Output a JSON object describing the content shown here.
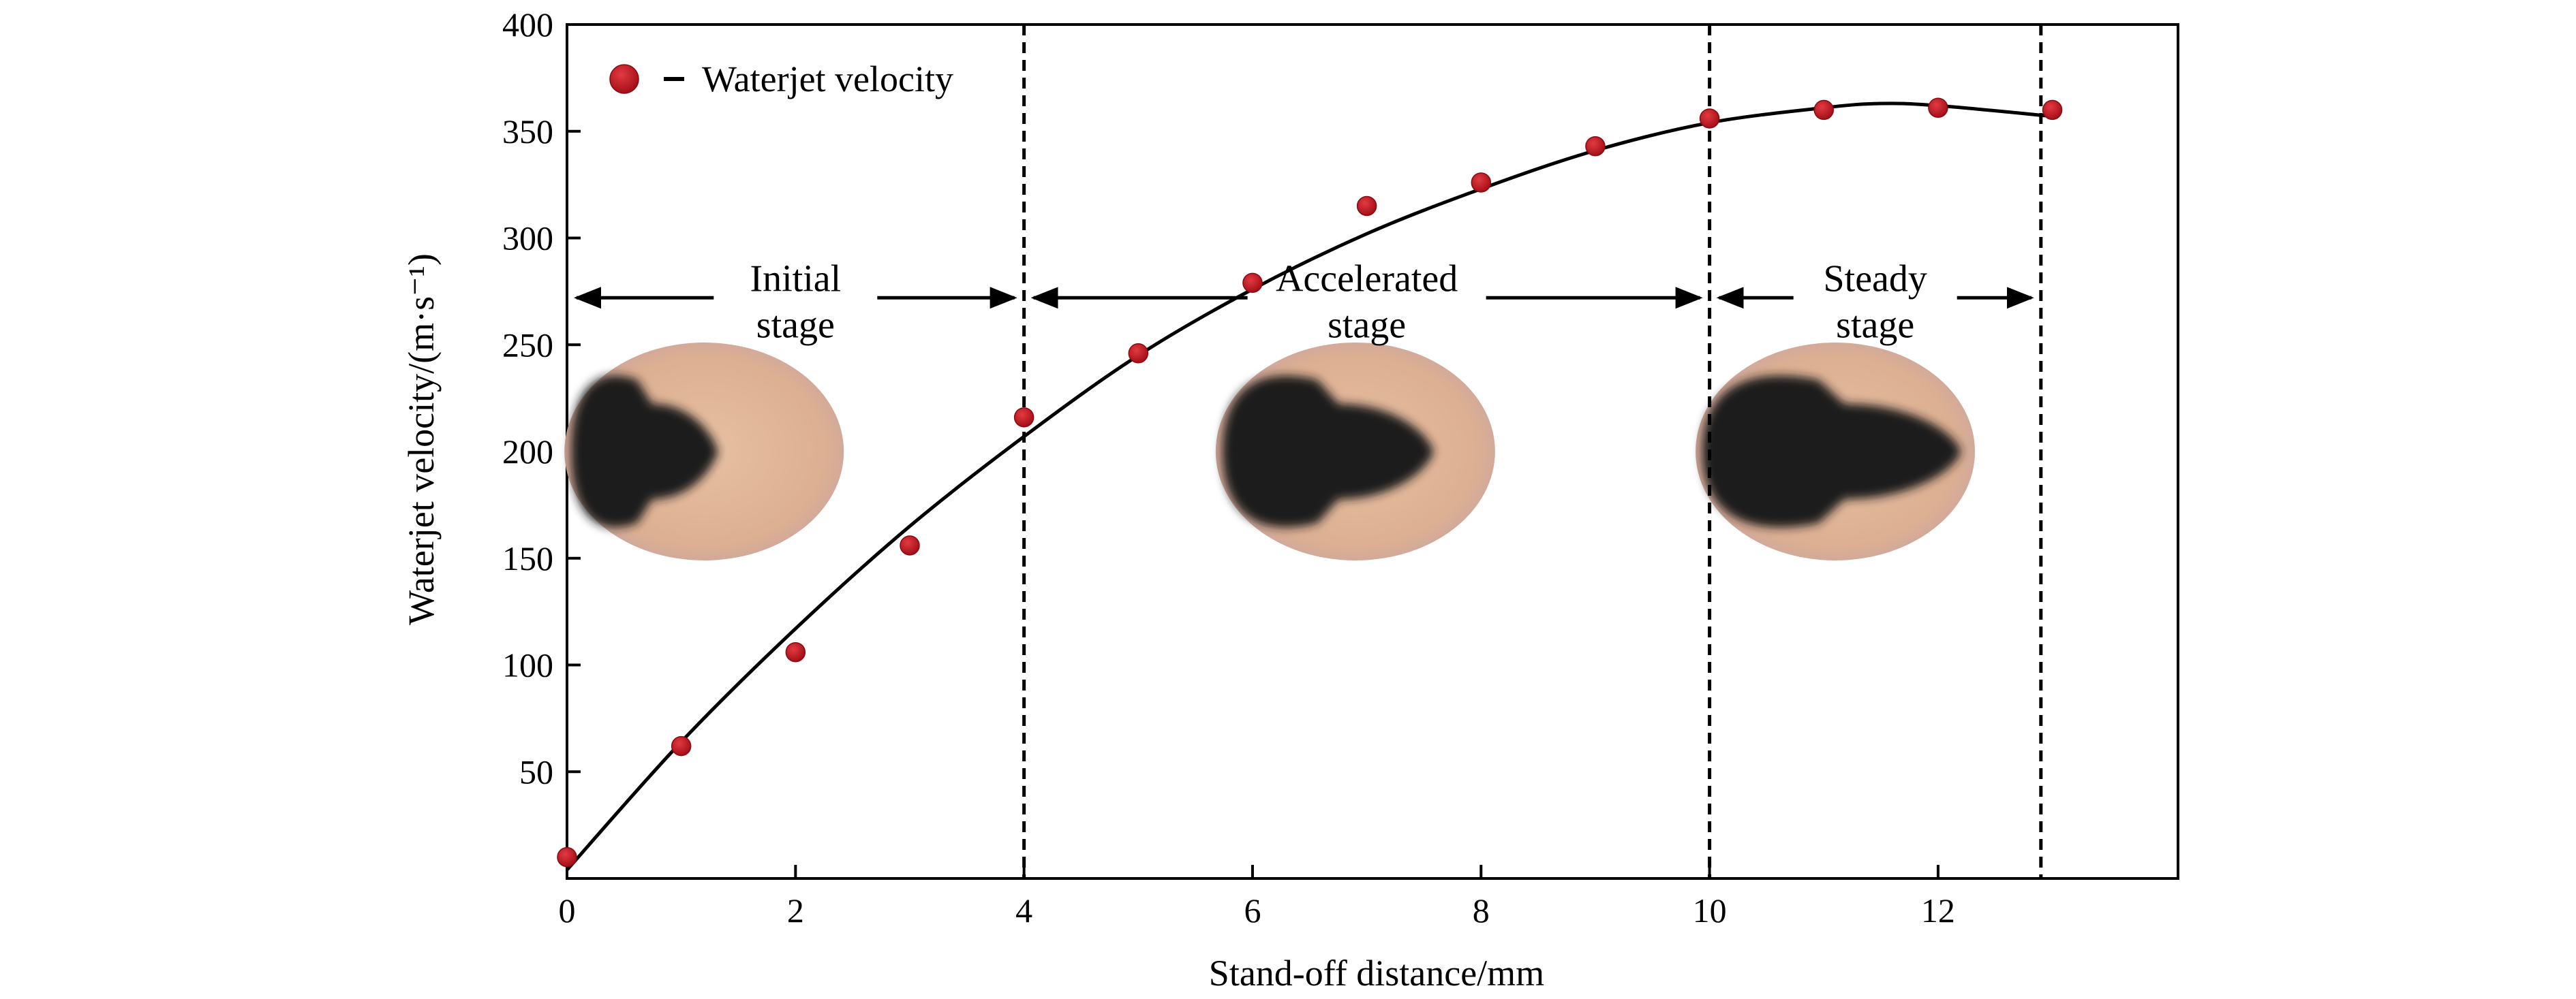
{
  "chart_data": {
    "type": "scatter",
    "xlabel": "Stand-off distance/mm",
    "ylabel": "Waterjet velocity/(m·s⁻¹)",
    "xlim": [
      0,
      14.1
    ],
    "ylim": [
      0,
      400
    ],
    "x_ticks": [
      "0",
      "2",
      "4",
      "6",
      "8",
      "10",
      "12"
    ],
    "x_tick_values": [
      0,
      2,
      4,
      6,
      8,
      10,
      12
    ],
    "y_ticks": [
      "50",
      "100",
      "150",
      "200",
      "250",
      "300",
      "350",
      "400"
    ],
    "y_tick_values": [
      50,
      100,
      150,
      200,
      250,
      300,
      350,
      400
    ],
    "grid": false,
    "legend": {
      "position": "top-left",
      "entries": [
        "Waterjet velocity"
      ]
    },
    "series": [
      {
        "name": "Waterjet velocity",
        "color": "#c0141e",
        "marker": "circle",
        "x": [
          0,
          1,
          2,
          3,
          4,
          5,
          6,
          7,
          8,
          9,
          10,
          11,
          12,
          13
        ],
        "y": [
          10,
          62,
          106,
          156,
          216,
          246,
          279,
          315,
          326,
          343,
          356,
          360,
          361,
          360
        ]
      }
    ],
    "fit_curve": {
      "style": "solid",
      "color": "#000000",
      "x": [
        0,
        1,
        2,
        3,
        4,
        5,
        6,
        7,
        8,
        9,
        10,
        11,
        11.5,
        12,
        13
      ],
      "y": [
        4,
        64,
        117,
        165,
        207,
        245,
        276,
        302,
        323,
        341,
        354,
        361,
        363,
        362,
        357
      ]
    },
    "stage_boundaries": [
      4,
      10,
      12.9
    ],
    "stages": [
      {
        "line1": "Initial",
        "line2": "stage",
        "x_from": 0,
        "x_to": 4
      },
      {
        "line1": "Accelerated",
        "line2": "stage",
        "x_from": 4,
        "x_to": 10
      },
      {
        "line1": "Steady",
        "line2": "stage",
        "x_from": 10,
        "x_to": 12.9
      }
    ],
    "arrow_y": 272,
    "jet_images": [
      {
        "stage": "Initial",
        "x": 1.2,
        "y": 200,
        "core_extent": 0.55
      },
      {
        "stage": "Accelerated",
        "x": 6.9,
        "y": 200,
        "core_extent": 0.78
      },
      {
        "stage": "Steady",
        "x": 11.1,
        "y": 200,
        "core_extent": 0.95
      }
    ]
  }
}
